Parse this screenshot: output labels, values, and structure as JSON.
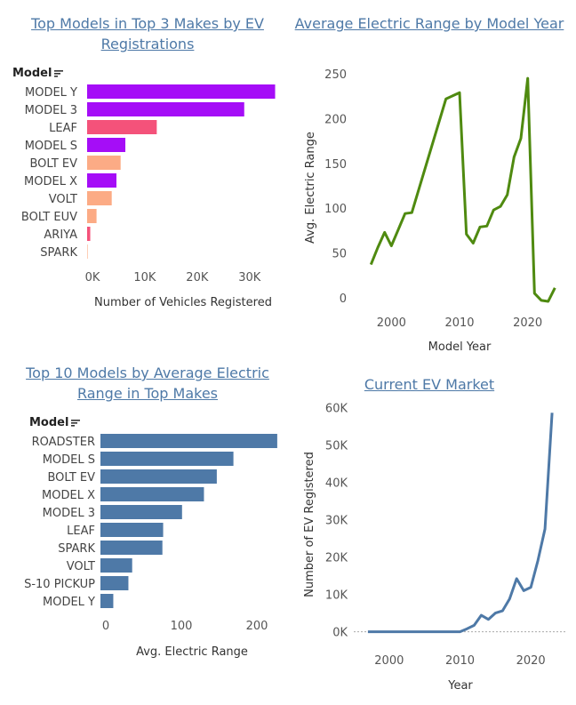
{
  "colors": {
    "title": "#4e79a7",
    "tesla": "#a50df7",
    "nissan": "#f4527a",
    "chevrolet": "#fcab85",
    "range_bar": "#4e79a7",
    "range_line": "#4f8a10",
    "market_line": "#4e79a7"
  },
  "icons": {
    "sort": "sort-descending-icon"
  },
  "panels": {
    "top_models": {
      "title": [
        "Top Models in Top 3 Makes by EV",
        "Registrations"
      ],
      "row_header": "Model"
    },
    "avg_range_year": {
      "title": [
        "Average Electric Range by Model Year"
      ]
    },
    "top10_range": {
      "title": [
        "Top 10 Models by Average Electric",
        "Range in Top Makes"
      ],
      "row_header": "Model"
    },
    "market": {
      "title": [
        "Current EV Market"
      ]
    }
  },
  "chart_data": [
    {
      "id": "top_models",
      "type": "bar",
      "orientation": "horizontal",
      "categories": [
        "MODEL Y",
        "MODEL 3",
        "LEAF",
        "MODEL S",
        "BOLT EV",
        "MODEL X",
        "VOLT",
        "BOLT EUV",
        "ARIYA",
        "SPARK"
      ],
      "values": [
        35900,
        30000,
        13300,
        7300,
        6400,
        5600,
        4700,
        1800,
        600,
        100
      ],
      "bar_colors": [
        "#a50df7",
        "#a50df7",
        "#f4527a",
        "#a50df7",
        "#fcab85",
        "#a50df7",
        "#fcab85",
        "#fcab85",
        "#f4527a",
        "#fcab85"
      ],
      "xlabel": "Number of Vehicles Registered",
      "xlim": [
        0,
        37000
      ],
      "xticks": [
        0,
        10000,
        20000,
        30000
      ],
      "xtick_labels": [
        "0K",
        "10K",
        "20K",
        "30K"
      ]
    },
    {
      "id": "avg_range_year",
      "type": "line",
      "x": [
        1997,
        1998,
        1999,
        2000,
        2001,
        2002,
        2003,
        2008,
        2010,
        2011,
        2012,
        2013,
        2014,
        2015,
        2016,
        2017,
        2018,
        2019,
        2020,
        2021,
        2022,
        2023,
        2024
      ],
      "y": [
        37,
        56,
        73,
        58,
        76,
        94,
        95,
        222,
        229,
        71,
        61,
        79,
        80,
        98,
        102,
        115,
        157,
        178,
        245,
        5,
        -3,
        -4,
        11
      ],
      "xlabel": "Model Year",
      "ylabel": "Avg. Electric Range",
      "xlim": [
        1995,
        2025
      ],
      "ylim": [
        -10,
        255
      ],
      "xticks": [
        2000,
        2010,
        2020
      ],
      "yticks": [
        0,
        50,
        100,
        150,
        200,
        250
      ]
    },
    {
      "id": "top10_range",
      "type": "bar",
      "orientation": "horizontal",
      "categories": [
        "ROADSTER",
        "MODEL S",
        "BOLT EV",
        "MODEL X",
        "MODEL 3",
        "LEAF",
        "SPARK",
        "VOLT",
        "S-10 PICKUP",
        "MODEL Y"
      ],
      "values": [
        234,
        176,
        154,
        137,
        108,
        83,
        82,
        42,
        37,
        17
      ],
      "xlabel": "Avg. Electric Range",
      "xlim": [
        0,
        240
      ],
      "xticks": [
        0,
        100,
        200
      ]
    },
    {
      "id": "market",
      "type": "line",
      "x": [
        1997,
        2000,
        2003,
        2005,
        2008,
        2010,
        2011,
        2012,
        2013,
        2014,
        2015,
        2016,
        2017,
        2018,
        2019,
        2020,
        2021,
        2022,
        2023
      ],
      "y": [
        0,
        0,
        0,
        0,
        0,
        0,
        800,
        1700,
        4400,
        3300,
        5000,
        5600,
        8800,
        14200,
        11000,
        11900,
        19000,
        27500,
        58600
      ],
      "xlabel": "Year",
      "ylabel": "Number of EV Registered",
      "xlim": [
        1995,
        2025
      ],
      "ylim": [
        -2000,
        62000
      ],
      "xticks": [
        2000,
        2010,
        2020
      ],
      "yticks": [
        0,
        10000,
        20000,
        30000,
        40000,
        50000,
        60000
      ],
      "ytick_labels": [
        "0K",
        "10K",
        "20K",
        "30K",
        "40K",
        "50K",
        "60K"
      ]
    }
  ]
}
